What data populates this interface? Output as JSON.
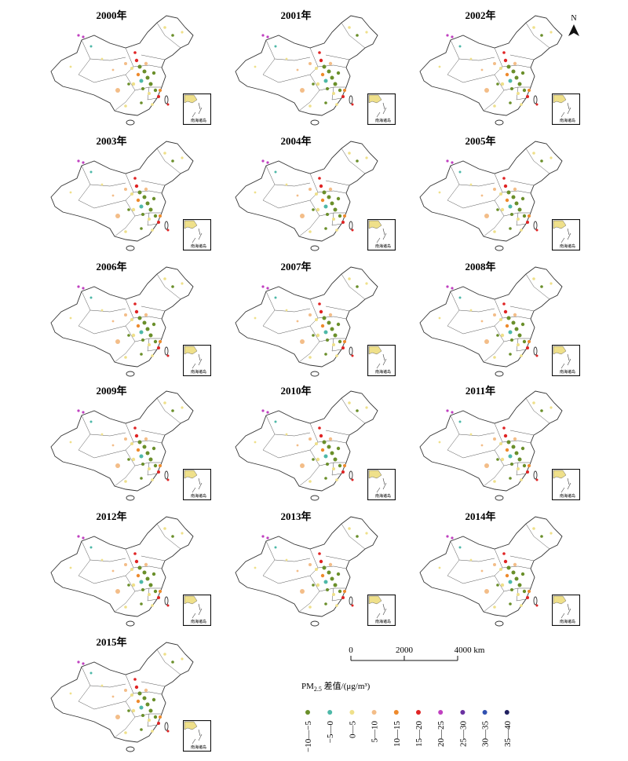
{
  "panels": [
    "2000年",
    "2001年",
    "2002年",
    "2003年",
    "2004年",
    "2005年",
    "2006年",
    "2007年",
    "2008年",
    "2009年",
    "2010年",
    "2011年",
    "2012年",
    "2013年",
    "2014年",
    "2015年"
  ],
  "inset_label": "南海诸岛",
  "north": "N",
  "scale_bar": {
    "labels": [
      "0",
      "2000",
      "4000 km"
    ]
  },
  "legend": {
    "title_prefix": "PM",
    "title_sub": "2.5",
    "title_suffix": " 差值/(μg/m³)",
    "items": [
      {
        "label": "−10—−5",
        "color": "#6a8f2a"
      },
      {
        "label": "−5—0",
        "color": "#4db8a8"
      },
      {
        "label": "0—5",
        "color": "#efe08a"
      },
      {
        "label": "5—10",
        "color": "#f3bd88"
      },
      {
        "label": "10—15",
        "color": "#ee8a2c"
      },
      {
        "label": "15—20",
        "color": "#e02424"
      },
      {
        "label": "20—25",
        "color": "#c040c0"
      },
      {
        "label": "25—30",
        "color": "#6a30a0"
      },
      {
        "label": "30—35",
        "color": "#3050b0"
      },
      {
        "label": "35—40",
        "color": "#202060"
      }
    ]
  }
}
